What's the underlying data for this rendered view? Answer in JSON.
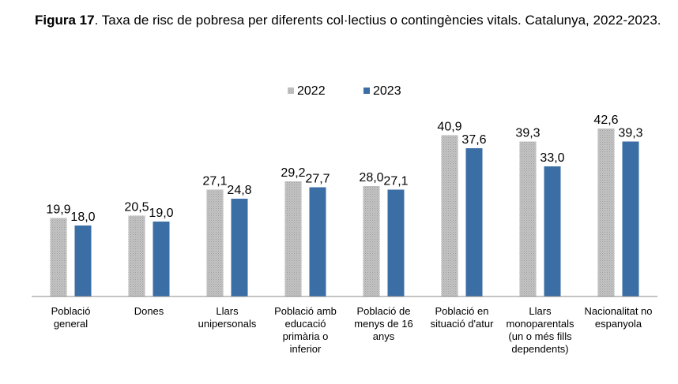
{
  "figure": {
    "label": "Figura 17",
    "caption": ". Taxa de risc de pobresa per diferents col·lectius o contingències vitals. Catalunya, 2022-2023."
  },
  "colors": {
    "s2022": "#b9b9b9",
    "s2023": "#3a6ea5",
    "axis": "#888888"
  },
  "chart_data": {
    "type": "bar",
    "title": "Taxa de risc de pobresa per diferents col·lectius o contingències vitals. Catalunya, 2022-2023.",
    "categories": [
      [
        "Població",
        "general"
      ],
      [
        "Dones"
      ],
      [
        "Llars",
        "unipersonals"
      ],
      [
        "Població amb",
        "educació",
        "primària o",
        "inferior"
      ],
      [
        "Població de",
        "menys de 16",
        "anys"
      ],
      [
        "Població en",
        "situació d'atur"
      ],
      [
        "Llars",
        "monoparentals",
        "(un o més fills",
        "dependents)"
      ],
      [
        "Nacionalitat no",
        "espanyola"
      ]
    ],
    "series": [
      {
        "name": "2022",
        "values": [
          19.9,
          20.5,
          27.1,
          29.2,
          28.0,
          40.9,
          39.3,
          42.6
        ],
        "labels": [
          "19,9",
          "20,5",
          "27,1",
          "29,2",
          "28,0",
          "40,9",
          "39,3",
          "42,6"
        ]
      },
      {
        "name": "2023",
        "values": [
          18.0,
          19.0,
          24.8,
          27.7,
          27.1,
          37.6,
          33.0,
          39.3
        ],
        "labels": [
          "18,0",
          "19,0",
          "24,8",
          "27,7",
          "27,1",
          "37,6",
          "33,0",
          "39,3"
        ]
      }
    ],
    "ylim": [
      0,
      50
    ],
    "legend": "top-center",
    "xlabel": "",
    "ylabel": ""
  }
}
